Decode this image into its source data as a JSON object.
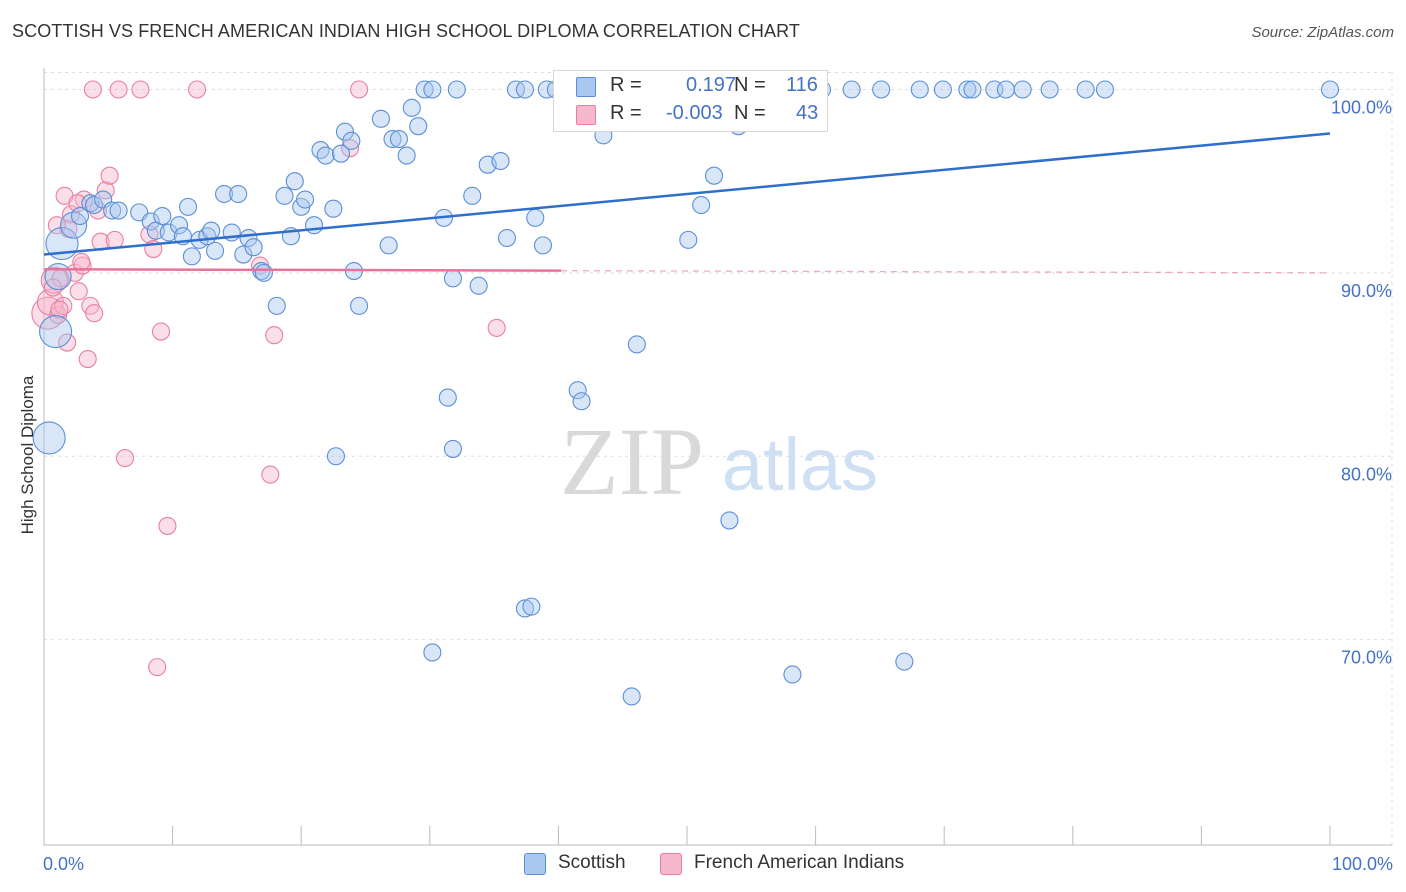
{
  "title": "SCOTTISH VS FRENCH AMERICAN INDIAN HIGH SCHOOL DIPLOMA CORRELATION CHART",
  "source": "Source: ZipAtlas.com",
  "watermark": {
    "zip": "ZIP",
    "atlas": "atlas"
  },
  "colors": {
    "scottish_fill": "#a8c8f0",
    "scottish_stroke": "#5b8fd6",
    "scottish_line": "#2f6fcc",
    "french_fill": "#f6b8cc",
    "french_stroke": "#e87fa0",
    "french_line": "#e8729a",
    "tick_text": "#4472c4",
    "grid": "#dddddd"
  },
  "legend": {
    "rows": [
      {
        "r_label": "R =",
        "r_value": "0.197",
        "n_label": "N =",
        "n_value": "116"
      },
      {
        "r_label": "R =",
        "r_value": "-0.003",
        "n_label": "N =",
        "n_value": "43"
      }
    ]
  },
  "bottom_legend": [
    "Scottish",
    "French American Indians"
  ],
  "chart_data": {
    "type": "scatter",
    "title": "SCOTTISH VS FRENCH AMERICAN INDIAN HIGH SCHOOL DIPLOMA CORRELATION CHART",
    "xlabel": "",
    "ylabel": "High School Diploma",
    "xlim": [
      0,
      100
    ],
    "ylim": [
      58.8,
      101.5
    ],
    "x_tick_labels": [
      "0.0%",
      "100.0%"
    ],
    "y_ticks": [
      70,
      80,
      90,
      100
    ],
    "y_tick_labels": [
      "70.0%",
      "80.0%",
      "90.0%",
      "100.0%"
    ],
    "grid": "horizontal dashed",
    "legend_placement": "top-center and bottom",
    "series": [
      {
        "name": "Scottish",
        "r": 0.197,
        "n": 116,
        "trend": {
          "x": [
            0,
            100
          ],
          "y": [
            91.0,
            97.6
          ]
        },
        "points": [
          [
            0.4,
            81.0,
            3
          ],
          [
            0.9,
            86.8,
            3
          ],
          [
            1.4,
            91.6,
            3
          ],
          [
            1.1,
            89.8,
            2
          ],
          [
            2.3,
            92.6,
            2
          ],
          [
            2.8,
            93.1,
            1
          ],
          [
            3.6,
            93.8,
            1
          ],
          [
            3.9,
            93.7,
            1
          ],
          [
            4.6,
            94.0,
            1
          ],
          [
            5.3,
            93.4,
            1
          ],
          [
            5.8,
            93.4,
            1
          ],
          [
            7.4,
            93.3,
            1
          ],
          [
            8.3,
            92.8,
            1
          ],
          [
            8.7,
            92.3,
            1
          ],
          [
            9.2,
            93.1,
            1
          ],
          [
            9.7,
            92.2,
            1
          ],
          [
            10.5,
            92.6,
            1
          ],
          [
            10.8,
            92.0,
            1
          ],
          [
            11.2,
            93.6,
            1
          ],
          [
            11.5,
            90.9,
            1
          ],
          [
            12.1,
            91.8,
            1
          ],
          [
            12.7,
            92.0,
            1
          ],
          [
            13.0,
            92.3,
            1
          ],
          [
            13.3,
            91.2,
            1
          ],
          [
            14.0,
            94.3,
            1
          ],
          [
            14.6,
            92.2,
            1
          ],
          [
            15.1,
            94.3,
            1
          ],
          [
            15.5,
            91.0,
            1
          ],
          [
            15.9,
            91.9,
            1
          ],
          [
            16.3,
            91.4,
            1
          ],
          [
            16.9,
            90.1,
            1
          ],
          [
            17.1,
            90.0,
            1
          ],
          [
            18.1,
            88.2,
            1
          ],
          [
            18.7,
            94.2,
            1
          ],
          [
            19.2,
            92.0,
            1
          ],
          [
            19.5,
            95.0,
            1
          ],
          [
            20.0,
            93.6,
            1
          ],
          [
            20.3,
            94.0,
            1
          ],
          [
            21.0,
            92.6,
            1
          ],
          [
            21.5,
            96.7,
            1
          ],
          [
            21.9,
            96.4,
            1
          ],
          [
            22.5,
            93.5,
            1
          ],
          [
            23.1,
            96.5,
            1
          ],
          [
            23.4,
            97.7,
            1
          ],
          [
            23.9,
            97.2,
            1
          ],
          [
            24.1,
            90.1,
            1
          ],
          [
            24.5,
            88.2,
            1
          ],
          [
            26.2,
            98.4,
            1
          ],
          [
            26.8,
            91.5,
            1
          ],
          [
            27.1,
            97.3,
            1
          ],
          [
            27.6,
            97.3,
            1
          ],
          [
            28.2,
            96.4,
            1
          ],
          [
            28.6,
            99.0,
            1
          ],
          [
            29.1,
            98.0,
            1
          ],
          [
            29.6,
            100.0,
            1
          ],
          [
            30.2,
            100.0,
            1
          ],
          [
            31.1,
            93.0,
            1
          ],
          [
            31.8,
            89.7,
            1
          ],
          [
            32.1,
            100.0,
            1
          ],
          [
            33.3,
            94.2,
            1
          ],
          [
            33.8,
            89.3,
            1
          ],
          [
            34.5,
            95.9,
            1
          ],
          [
            35.5,
            96.1,
            1
          ],
          [
            36.0,
            91.9,
            1
          ],
          [
            36.7,
            100.0,
            1
          ],
          [
            37.4,
            100.0,
            1
          ],
          [
            38.2,
            93.0,
            1
          ],
          [
            38.8,
            91.5,
            1
          ],
          [
            39.1,
            100.0,
            1
          ],
          [
            39.8,
            100.0,
            1
          ],
          [
            40.5,
            100.0,
            1
          ],
          [
            41.0,
            100.0,
            1
          ],
          [
            41.5,
            83.6,
            1
          ],
          [
            41.8,
            83.0,
            1
          ],
          [
            42.4,
            100.0,
            1
          ],
          [
            43.1,
            100.0,
            1
          ],
          [
            43.5,
            97.5,
            1
          ],
          [
            44.0,
            100.0,
            1
          ],
          [
            45.2,
            98.7,
            1
          ],
          [
            45.5,
            100.0,
            1
          ],
          [
            46.1,
            86.1,
            1
          ],
          [
            46.8,
            100.0,
            1
          ],
          [
            47.5,
            100.0,
            1
          ],
          [
            48.1,
            100.0,
            1
          ],
          [
            49.0,
            100.0,
            1
          ],
          [
            49.9,
            100.0,
            1
          ],
          [
            50.1,
            91.8,
            1
          ],
          [
            50.6,
            100.0,
            1
          ],
          [
            51.1,
            93.7,
            1
          ],
          [
            52.1,
            95.3,
            1
          ],
          [
            52.7,
            100.0,
            1
          ],
          [
            53.2,
            100.0,
            1
          ],
          [
            53.7,
            98.5,
            1
          ],
          [
            54.0,
            98.0,
            1
          ],
          [
            54.8,
            100.0,
            1
          ],
          [
            55.6,
            100.0,
            1
          ],
          [
            56.2,
            100.0,
            1
          ],
          [
            57.3,
            100.0,
            1
          ],
          [
            58.1,
            100.0,
            1
          ],
          [
            59.0,
            100.0,
            1
          ],
          [
            60.5,
            100.0,
            1
          ],
          [
            62.8,
            100.0,
            1
          ],
          [
            65.1,
            100.0,
            1
          ],
          [
            68.1,
            100.0,
            1
          ],
          [
            69.9,
            100.0,
            1
          ],
          [
            71.8,
            100.0,
            1
          ],
          [
            72.2,
            100.0,
            1
          ],
          [
            73.9,
            100.0,
            1
          ],
          [
            74.8,
            100.0,
            1
          ],
          [
            76.1,
            100.0,
            1
          ],
          [
            78.2,
            100.0,
            1
          ],
          [
            81.0,
            100.0,
            1
          ],
          [
            82.5,
            100.0,
            1
          ],
          [
            100.0,
            100.0,
            1
          ],
          [
            22.7,
            80.0,
            1
          ],
          [
            31.4,
            83.2,
            1
          ],
          [
            31.8,
            80.4,
            1
          ],
          [
            53.3,
            76.5,
            1
          ],
          [
            37.4,
            71.7,
            1
          ],
          [
            37.9,
            71.8,
            1
          ],
          [
            30.2,
            69.3,
            1
          ],
          [
            45.7,
            66.9,
            1
          ],
          [
            58.2,
            68.1,
            1
          ],
          [
            66.9,
            68.8,
            1
          ]
        ]
      },
      {
        "name": "French American Indians",
        "r": -0.003,
        "n": 43,
        "trend": {
          "x": [
            0,
            100
          ],
          "y": [
            90.2,
            90.0
          ]
        },
        "points": [
          [
            0.3,
            87.8,
            3
          ],
          [
            0.5,
            88.4,
            2
          ],
          [
            0.8,
            89.6,
            2
          ],
          [
            1.1,
            87.7,
            1
          ],
          [
            1.3,
            89.7,
            1
          ],
          [
            1.6,
            94.2,
            1
          ],
          [
            1.8,
            86.2,
            1
          ],
          [
            1.5,
            88.2,
            1
          ],
          [
            1.9,
            92.4,
            1
          ],
          [
            2.1,
            93.2,
            1
          ],
          [
            2.4,
            90.0,
            1
          ],
          [
            2.7,
            89.0,
            1
          ],
          [
            3.0,
            90.4,
            1
          ],
          [
            3.1,
            94.0,
            1
          ],
          [
            3.4,
            85.3,
            1
          ],
          [
            3.6,
            88.2,
            1
          ],
          [
            3.9,
            87.8,
            1
          ],
          [
            4.2,
            93.4,
            1
          ],
          [
            4.4,
            91.7,
            1
          ],
          [
            4.8,
            94.5,
            1
          ],
          [
            5.1,
            95.3,
            1
          ],
          [
            5.5,
            91.8,
            1
          ],
          [
            6.3,
            79.9,
            1
          ],
          [
            7.5,
            100.0,
            1
          ],
          [
            9.1,
            86.8,
            1
          ],
          [
            8.2,
            92.1,
            1
          ],
          [
            8.5,
            91.3,
            1
          ],
          [
            9.6,
            76.2,
            1
          ],
          [
            8.8,
            68.5,
            1
          ],
          [
            11.9,
            100.0,
            1
          ],
          [
            16.8,
            90.4,
            1
          ],
          [
            17.6,
            79.0,
            1
          ],
          [
            17.9,
            86.6,
            1
          ],
          [
            23.8,
            96.8,
            1
          ],
          [
            24.5,
            100.0,
            1
          ],
          [
            35.2,
            87.0,
            1
          ],
          [
            5.8,
            100.0,
            1
          ],
          [
            3.8,
            100.0,
            1
          ],
          [
            2.9,
            90.6,
            1
          ],
          [
            1.0,
            92.6,
            1
          ],
          [
            1.2,
            88.0,
            1
          ],
          [
            2.6,
            93.8,
            1
          ],
          [
            0.7,
            89.2,
            1
          ]
        ]
      }
    ]
  }
}
